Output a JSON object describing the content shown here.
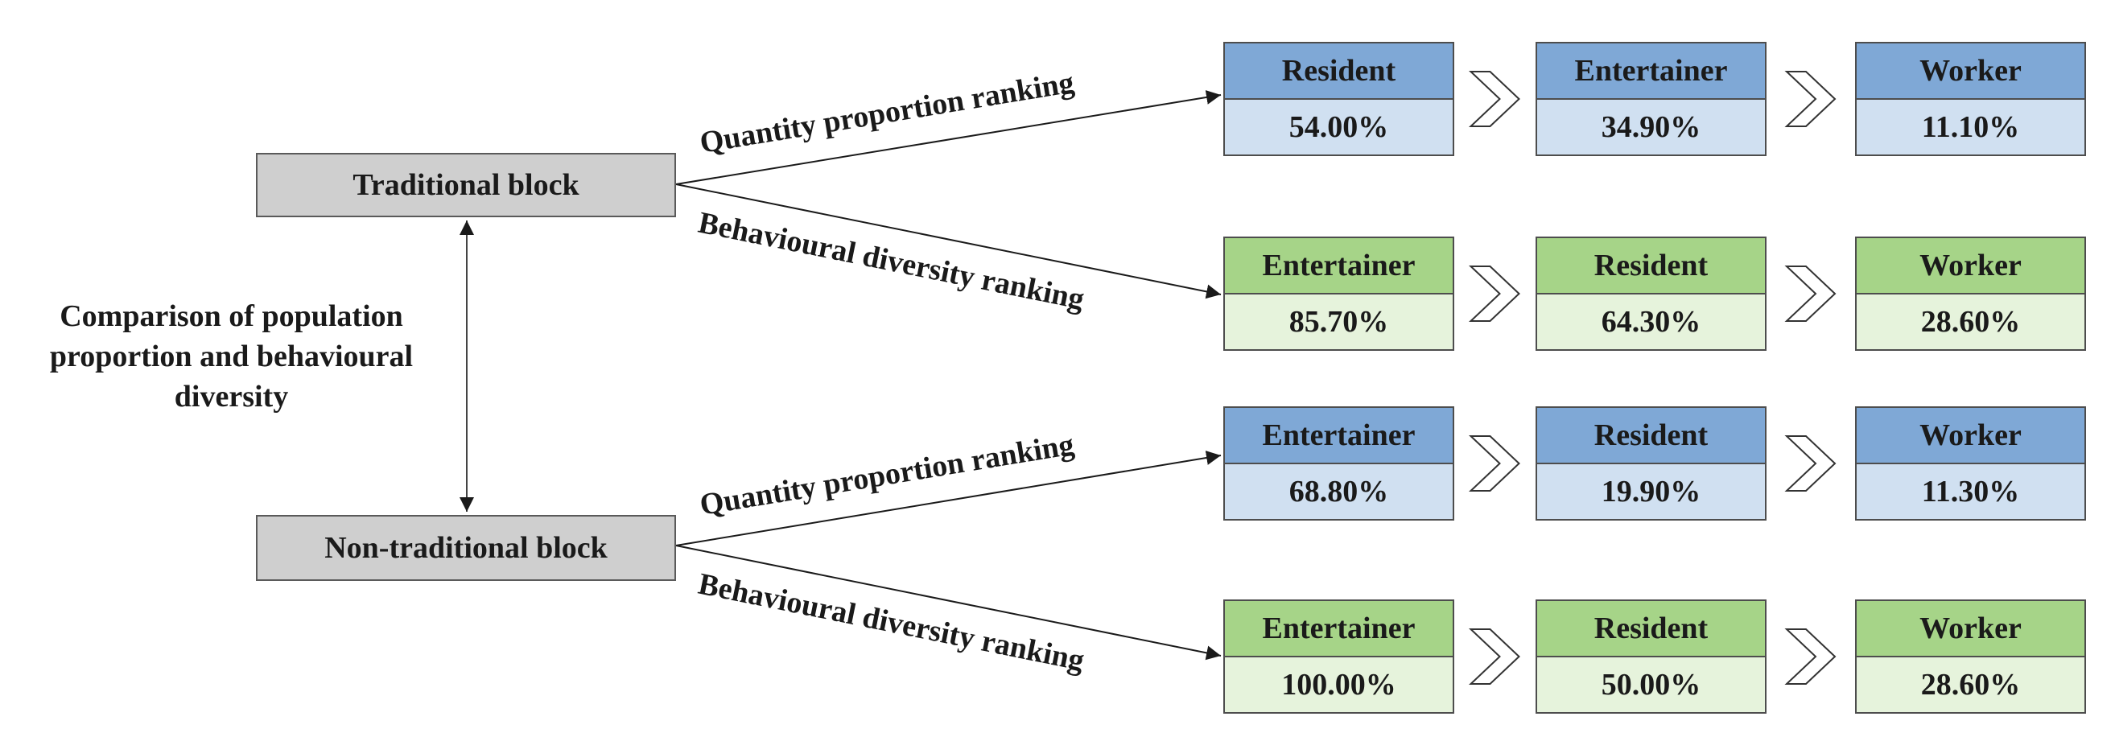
{
  "traditional_block": "Traditional block",
  "non_traditional_block": "Non-traditional block",
  "comparison_label": [
    "Comparison of population",
    "proportion and behavioural",
    "diversity"
  ],
  "edge_labels": {
    "quantity": "Quantity proportion ranking",
    "behaviour": "Behavioural diversity ranking"
  },
  "rows": [
    {
      "kind": "quantity",
      "color": "blue",
      "items": [
        {
          "label": "Resident",
          "value": "54.00%"
        },
        {
          "label": "Entertainer",
          "value": "34.90%"
        },
        {
          "label": "Worker",
          "value": "11.10%"
        }
      ]
    },
    {
      "kind": "behaviour",
      "color": "green",
      "items": [
        {
          "label": "Entertainer",
          "value": "85.70%"
        },
        {
          "label": "Resident",
          "value": "64.30%"
        },
        {
          "label": "Worker",
          "value": "28.60%"
        }
      ]
    },
    {
      "kind": "quantity",
      "color": "blue",
      "items": [
        {
          "label": "Entertainer",
          "value": "68.80%"
        },
        {
          "label": "Resident",
          "value": "19.90%"
        },
        {
          "label": "Worker",
          "value": "11.30%"
        }
      ]
    },
    {
      "kind": "behaviour",
      "color": "green",
      "items": [
        {
          "label": "Entertainer",
          "value": "100.00%"
        },
        {
          "label": "Resident",
          "value": "50.00%"
        },
        {
          "label": "Worker",
          "value": "28.60%"
        }
      ]
    }
  ],
  "colors": {
    "blue_header": "#7fa8d6",
    "blue_body": "#d0e0f1",
    "green_header": "#a6d488",
    "green_body": "#e6f3dc",
    "block_fill": "#cfcfcf"
  }
}
